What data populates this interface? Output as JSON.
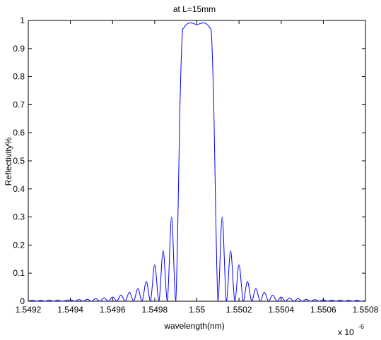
{
  "chart_data": {
    "type": "line",
    "title": "at L=15mm",
    "xlabel": "wavelength(nm)",
    "ylabel": "Reflectivity%",
    "x_exponent_label": {
      "base": "x 10",
      "exp": "-6"
    },
    "xlim": [
      1.5492,
      1.5508
    ],
    "ylim": [
      0,
      1
    ],
    "x_tick_labels": [
      "1.5492",
      "1.5494",
      "1.5496",
      "1.5498",
      "1.55",
      "1.5502",
      "1.5504",
      "1.5506",
      "1.5508"
    ],
    "x_tick_values": [
      1.5492,
      1.5494,
      1.5496,
      1.5498,
      1.55,
      1.5502,
      1.5504,
      1.5506,
      1.5508
    ],
    "y_tick_labels": [
      "0",
      "0.1",
      "0.2",
      "0.3",
      "0.4",
      "0.5",
      "0.6",
      "0.7",
      "0.8",
      "0.9",
      "1"
    ],
    "y_tick_values": [
      0,
      0.1,
      0.2,
      0.3,
      0.4,
      0.5,
      0.6,
      0.7,
      0.8,
      0.9,
      1
    ],
    "grid": false,
    "line_color": "#0000ff",
    "series": [
      {
        "x": [
          1.5492,
          1.54922,
          1.54924,
          1.54926,
          1.54928,
          1.5493,
          1.54932,
          1.54934,
          1.54936,
          1.5494,
          1.54942,
          1.54944,
          1.54946,
          1.54948,
          1.5495,
          1.54952,
          1.54954,
          1.54956,
          1.54958,
          1.5496,
          1.54962,
          1.54964,
          1.54966,
          1.54968,
          1.5497,
          1.54972,
          1.54974,
          1.54976,
          1.54978,
          1.5498,
          1.54982,
          1.54984,
          1.54986,
          1.54988,
          1.5499,
          1.54992,
          1.54993,
          1.54994,
          1.54996,
          1.54998,
          1.55,
          1.55002,
          1.55004,
          1.55006,
          1.55007,
          1.55008,
          1.5501,
          1.55012,
          1.55014,
          1.55016,
          1.55018,
          1.5502,
          1.55022,
          1.55024,
          1.55026,
          1.55028,
          1.5503,
          1.55032,
          1.55034,
          1.55036,
          1.55038,
          1.5504,
          1.55042,
          1.55044,
          1.55046,
          1.55048,
          1.5505,
          1.55052,
          1.55054,
          1.55056,
          1.55058,
          1.5506,
          1.55062,
          1.55064,
          1.55066,
          1.55068,
          1.5507,
          1.55072,
          1.55074,
          1.55076,
          1.55078,
          1.5508
        ],
        "y": [
          0.0,
          0.003,
          0.0,
          0.003,
          0.0,
          0.004,
          0.0,
          0.004,
          0.0,
          0.005,
          0.0,
          0.006,
          0.0,
          0.007,
          0.0,
          0.009,
          0.0,
          0.012,
          0.0,
          0.015,
          0.0,
          0.022,
          0.0,
          0.032,
          0.0,
          0.045,
          0.0,
          0.07,
          0.0,
          0.13,
          0.0,
          0.18,
          0.0,
          0.3,
          0.0,
          0.7,
          0.94,
          0.975,
          0.99,
          0.99,
          0.985,
          0.99,
          0.99,
          0.975,
          0.94,
          0.7,
          0.0,
          0.3,
          0.0,
          0.18,
          0.0,
          0.13,
          0.0,
          0.07,
          0.0,
          0.045,
          0.0,
          0.032,
          0.0,
          0.022,
          0.0,
          0.015,
          0.0,
          0.012,
          0.0,
          0.009,
          0.0,
          0.007,
          0.0,
          0.006,
          0.0,
          0.005,
          0.0,
          0.004,
          0.0,
          0.004,
          0.0,
          0.003,
          0.0,
          0.003,
          0.0,
          0.002
        ]
      }
    ]
  }
}
